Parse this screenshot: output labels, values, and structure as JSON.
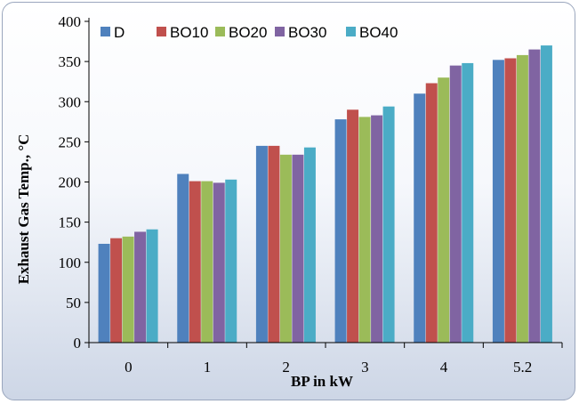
{
  "chart_data": {
    "type": "bar",
    "title": "",
    "xlabel": "BP in kW",
    "ylabel": "Exhaust Gas Temp., °C",
    "categories": [
      "0",
      "1",
      "2",
      "3",
      "4",
      "5.2"
    ],
    "ylim": [
      0,
      400
    ],
    "yticks": [
      0,
      50,
      100,
      150,
      200,
      250,
      300,
      350,
      400
    ],
    "grid": false,
    "legend_position": "top",
    "series": [
      {
        "name": "D",
        "color": "#4f81bd",
        "values": [
          123,
          210,
          245,
          278,
          310,
          352
        ]
      },
      {
        "name": "BO10",
        "color": "#c0504d",
        "values": [
          130,
          201,
          245,
          290,
          323,
          354
        ]
      },
      {
        "name": "BO20",
        "color": "#9bbb59",
        "values": [
          132,
          201,
          234,
          281,
          330,
          358
        ]
      },
      {
        "name": "BO30",
        "color": "#8064a2",
        "values": [
          138,
          199,
          234,
          283,
          345,
          365
        ]
      },
      {
        "name": "BO40",
        "color": "#4bacc6",
        "values": [
          141,
          203,
          243,
          294,
          348,
          370
        ]
      }
    ]
  }
}
